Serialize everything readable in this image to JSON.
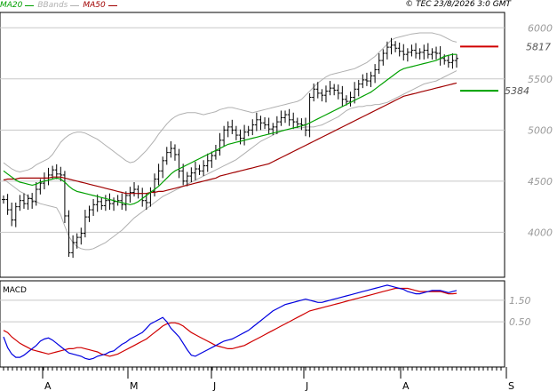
{
  "header": {
    "copyright": "© TEC 23/8/2026 3:0 GMT",
    "legend": [
      {
        "label": "MA20",
        "color": "#00a000",
        "text_color": "#00a000"
      },
      {
        "label": "BBands",
        "color": "#b0b0b0",
        "text_color": "#b0b0b0"
      },
      {
        "label": "MA50",
        "color": "#a00000",
        "text_color": "#a00000"
      }
    ]
  },
  "chart_data": [
    {
      "type": "ohlc",
      "title": "",
      "y_ticks": [
        4000,
        4500,
        5000,
        5500,
        6000
      ],
      "ylim": [
        3560,
        6150
      ],
      "grid": true,
      "x_month_labels": [
        "A",
        "M",
        "J",
        "J",
        "A",
        "S"
      ],
      "levels": [
        {
          "name": "resistance",
          "value": 5817,
          "label": "5817",
          "color": "#d00000"
        },
        {
          "name": "support",
          "value": 5384,
          "label": "5384",
          "color": "#00a000"
        }
      ],
      "colors": {
        "price": "#000000",
        "ma20": "#00a000",
        "ma50": "#a00000",
        "bbands": "#b0b0b0"
      },
      "series": {
        "close": [
          4320,
          4220,
          4120,
          4250,
          4310,
          4280,
          4330,
          4300,
          4420,
          4480,
          4530,
          4560,
          4610,
          4570,
          4560,
          4160,
          3800,
          3900,
          3950,
          3990,
          4150,
          4220,
          4270,
          4300,
          4260,
          4310,
          4280,
          4300,
          4310,
          4270,
          4360,
          4390,
          4420,
          4380,
          4310,
          4290,
          4400,
          4520,
          4600,
          4700,
          4780,
          4820,
          4760,
          4600,
          4500,
          4550,
          4580,
          4620,
          4600,
          4650,
          4700,
          4750,
          4800,
          4900,
          5000,
          5030,
          5000,
          4950,
          4920,
          4980,
          5000,
          5050,
          5100,
          5070,
          5050,
          5010,
          5030,
          5080,
          5120,
          5150,
          5100,
          5080,
          5060,
          5050,
          5000,
          5320,
          5400,
          5360,
          5340,
          5380,
          5410,
          5390,
          5360,
          5300,
          5280,
          5320,
          5400,
          5450,
          5490,
          5480,
          5530,
          5590,
          5680,
          5750,
          5810,
          5830,
          5800,
          5770,
          5740,
          5760,
          5780,
          5750,
          5760,
          5780,
          5740,
          5760,
          5750,
          5700,
          5680,
          5660,
          5680,
          5700
        ],
        "ma20": [
          4600,
          4570,
          4540,
          4510,
          4490,
          4480,
          4470,
          4460,
          4470,
          4490,
          4500,
          4510,
          4520,
          4530,
          4520,
          4490,
          4450,
          4420,
          4400,
          4390,
          4380,
          4370,
          4360,
          4350,
          4340,
          4330,
          4320,
          4310,
          4300,
          4290,
          4280,
          4270,
          4280,
          4300,
          4330,
          4360,
          4390,
          4420,
          4450,
          4490,
          4530,
          4570,
          4600,
          4620,
          4640,
          4660,
          4680,
          4700,
          4720,
          4740,
          4760,
          4780,
          4800,
          4820,
          4840,
          4860,
          4870,
          4880,
          4890,
          4900,
          4910,
          4920,
          4930,
          4940,
          4950,
          4960,
          4970,
          4980,
          4990,
          5000,
          5010,
          5020,
          5030,
          5040,
          5050,
          5070,
          5090,
          5110,
          5130,
          5150,
          5170,
          5190,
          5210,
          5230,
          5250,
          5270,
          5290,
          5310,
          5330,
          5350,
          5370,
          5400,
          5430,
          5460,
          5490,
          5520,
          5550,
          5580,
          5600,
          5610,
          5620,
          5630,
          5640,
          5650,
          5660,
          5670,
          5680,
          5700,
          5720,
          5730,
          5740,
          5740
        ],
        "ma50": [
          4510,
          4520,
          4520,
          4520,
          4530,
          4530,
          4530,
          4530,
          4530,
          4530,
          4530,
          4530,
          4540,
          4540,
          4540,
          4530,
          4520,
          4510,
          4500,
          4490,
          4480,
          4470,
          4460,
          4450,
          4440,
          4430,
          4420,
          4410,
          4400,
          4390,
          4380,
          4380,
          4380,
          4380,
          4380,
          4380,
          4390,
          4390,
          4400,
          4400,
          4410,
          4420,
          4430,
          4440,
          4450,
          4460,
          4470,
          4480,
          4490,
          4500,
          4510,
          4520,
          4530,
          4550,
          4560,
          4570,
          4580,
          4590,
          4600,
          4610,
          4620,
          4630,
          4640,
          4650,
          4660,
          4670,
          4690,
          4710,
          4730,
          4750,
          4770,
          4790,
          4810,
          4830,
          4850,
          4870,
          4890,
          4910,
          4930,
          4950,
          4970,
          4990,
          5010,
          5030,
          5050,
          5070,
          5090,
          5110,
          5130,
          5150,
          5170,
          5190,
          5210,
          5230,
          5250,
          5270,
          5290,
          5310,
          5330,
          5340,
          5350,
          5360,
          5370,
          5380,
          5390,
          5400,
          5410,
          5420,
          5430,
          5440,
          5450,
          5460
        ],
        "bb_upper": [
          4680,
          4650,
          4620,
          4600,
          4590,
          4600,
          4610,
          4630,
          4660,
          4680,
          4700,
          4720,
          4760,
          4820,
          4880,
          4920,
          4950,
          4970,
          4980,
          4980,
          4970,
          4950,
          4930,
          4910,
          4880,
          4850,
          4820,
          4790,
          4760,
          4730,
          4700,
          4680,
          4690,
          4720,
          4760,
          4800,
          4850,
          4900,
          4960,
          5010,
          5060,
          5100,
          5130,
          5150,
          5160,
          5170,
          5170,
          5170,
          5160,
          5150,
          5160,
          5170,
          5180,
          5200,
          5210,
          5220,
          5220,
          5210,
          5200,
          5190,
          5180,
          5170,
          5180,
          5190,
          5200,
          5210,
          5220,
          5230,
          5240,
          5250,
          5260,
          5270,
          5280,
          5300,
          5340,
          5380,
          5420,
          5460,
          5490,
          5520,
          5540,
          5550,
          5560,
          5570,
          5580,
          5590,
          5600,
          5620,
          5640,
          5660,
          5690,
          5720,
          5760,
          5800,
          5840,
          5880,
          5900,
          5910,
          5920,
          5930,
          5940,
          5945,
          5950,
          5950,
          5950,
          5950,
          5940,
          5930,
          5910,
          5890,
          5870,
          5860
        ],
        "bb_lower": [
          4520,
          4490,
          4460,
          4430,
          4400,
          4380,
          4350,
          4320,
          4300,
          4280,
          4270,
          4260,
          4250,
          4240,
          4170,
          4060,
          3960,
          3900,
          3860,
          3840,
          3830,
          3830,
          3840,
          3860,
          3880,
          3900,
          3930,
          3960,
          3990,
          4020,
          4060,
          4100,
          4140,
          4170,
          4200,
          4230,
          4260,
          4290,
          4320,
          4350,
          4370,
          4390,
          4410,
          4430,
          4450,
          4470,
          4490,
          4510,
          4530,
          4550,
          4570,
          4590,
          4610,
          4630,
          4650,
          4670,
          4690,
          4710,
          4740,
          4770,
          4800,
          4830,
          4860,
          4890,
          4910,
          4930,
          4950,
          4970,
          4990,
          5000,
          5010,
          5020,
          5020,
          5020,
          5030,
          5030,
          5030,
          5040,
          5050,
          5070,
          5090,
          5110,
          5130,
          5160,
          5190,
          5210,
          5220,
          5230,
          5230,
          5240,
          5240,
          5250,
          5250,
          5260,
          5270,
          5290,
          5310,
          5330,
          5350,
          5370,
          5390,
          5410,
          5430,
          5450,
          5460,
          5470,
          5480,
          5500,
          5520,
          5540,
          5560,
          5580
        ]
      }
    },
    {
      "type": "line",
      "title": "MACD",
      "y_ticks": [
        0.5,
        1.5
      ],
      "y_tick_labels": [
        "0.50",
        "1.50"
      ],
      "ylim": [
        -1.6,
        2.4
      ],
      "grid": true,
      "colors": {
        "macd": "#0000e0",
        "signal": "#d00000"
      },
      "series": {
        "macd": [
          -0.2,
          -0.7,
          -1.0,
          -1.15,
          -1.15,
          -1.05,
          -0.9,
          -0.75,
          -0.6,
          -0.4,
          -0.3,
          -0.25,
          -0.35,
          -0.5,
          -0.65,
          -0.8,
          -0.95,
          -1.0,
          -1.05,
          -1.1,
          -1.2,
          -1.25,
          -1.2,
          -1.1,
          -1.05,
          -1.0,
          -0.9,
          -0.85,
          -0.7,
          -0.55,
          -0.45,
          -0.3,
          -0.2,
          -0.1,
          0.0,
          0.2,
          0.4,
          0.5,
          0.6,
          0.7,
          0.5,
          0.2,
          0.0,
          -0.2,
          -0.5,
          -0.8,
          -1.05,
          -1.1,
          -1.0,
          -0.9,
          -0.8,
          -0.7,
          -0.6,
          -0.5,
          -0.4,
          -0.35,
          -0.3,
          -0.2,
          -0.1,
          0.0,
          0.1,
          0.25,
          0.4,
          0.55,
          0.7,
          0.85,
          1.0,
          1.1,
          1.2,
          1.3,
          1.35,
          1.4,
          1.45,
          1.5,
          1.55,
          1.5,
          1.45,
          1.4,
          1.4,
          1.45,
          1.5,
          1.55,
          1.6,
          1.65,
          1.7,
          1.75,
          1.8,
          1.85,
          1.9,
          1.95,
          2.0,
          2.05,
          2.1,
          2.15,
          2.2,
          2.15,
          2.1,
          2.05,
          2.0,
          1.9,
          1.85,
          1.8,
          1.8,
          1.85,
          1.9,
          1.95,
          1.95,
          1.95,
          1.9,
          1.85,
          1.9,
          1.95
        ],
        "signal": [
          0.1,
          0.0,
          -0.2,
          -0.35,
          -0.5,
          -0.6,
          -0.7,
          -0.8,
          -0.85,
          -0.9,
          -0.95,
          -1.0,
          -0.95,
          -0.9,
          -0.85,
          -0.8,
          -0.75,
          -0.75,
          -0.7,
          -0.7,
          -0.75,
          -0.8,
          -0.85,
          -0.9,
          -1.0,
          -1.05,
          -1.1,
          -1.05,
          -1.0,
          -0.9,
          -0.8,
          -0.7,
          -0.6,
          -0.5,
          -0.4,
          -0.3,
          -0.15,
          0.0,
          0.15,
          0.3,
          0.4,
          0.45,
          0.45,
          0.4,
          0.3,
          0.15,
          0.0,
          -0.1,
          -0.2,
          -0.3,
          -0.4,
          -0.5,
          -0.6,
          -0.65,
          -0.7,
          -0.75,
          -0.75,
          -0.7,
          -0.65,
          -0.6,
          -0.5,
          -0.4,
          -0.3,
          -0.2,
          -0.1,
          0.0,
          0.1,
          0.2,
          0.3,
          0.4,
          0.5,
          0.6,
          0.7,
          0.8,
          0.9,
          1.0,
          1.05,
          1.1,
          1.15,
          1.2,
          1.25,
          1.3,
          1.35,
          1.4,
          1.45,
          1.5,
          1.55,
          1.6,
          1.65,
          1.7,
          1.75,
          1.8,
          1.85,
          1.9,
          1.95,
          2.0,
          2.05,
          2.05,
          2.05,
          2.05,
          2.0,
          1.95,
          1.9,
          1.9,
          1.9,
          1.9,
          1.9,
          1.9,
          1.85,
          1.8,
          1.8,
          1.82
        ]
      }
    }
  ]
}
